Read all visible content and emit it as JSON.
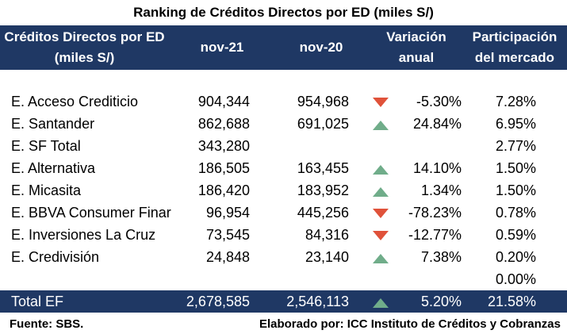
{
  "title": "Ranking de Créditos Directos por ED (miles S/)",
  "header": {
    "col_name": "Créditos Directos por ED\n(miles S/)",
    "col_nov21": "nov-21",
    "col_nov20": "nov-20",
    "col_var": "Variación\nanual",
    "col_part": "Participación\ndel mercado"
  },
  "rows": [
    {
      "name": "E. Acceso Crediticio",
      "nov21": "904,344",
      "nov20": "954,968",
      "trend": "down",
      "var": "-5.30%",
      "part": "7.28%"
    },
    {
      "name": "E. Santander",
      "nov21": "862,688",
      "nov20": "691,025",
      "trend": "up",
      "var": "24.84%",
      "part": "6.95%"
    },
    {
      "name": "E. SF Total",
      "nov21": "343,280",
      "nov20": "",
      "trend": "",
      "var": "",
      "part": "2.77%"
    },
    {
      "name": "E. Alternativa",
      "nov21": "186,505",
      "nov20": "163,455",
      "trend": "up",
      "var": "14.10%",
      "part": "1.50%"
    },
    {
      "name": "E. Micasita",
      "nov21": "186,420",
      "nov20": "183,952",
      "trend": "up",
      "var": "1.34%",
      "part": "1.50%"
    },
    {
      "name": "E. BBVA Consumer Finar",
      "nov21": "96,954",
      "nov20": "445,256",
      "trend": "down",
      "var": "-78.23%",
      "part": "0.78%"
    },
    {
      "name": "E. Inversiones La Cruz",
      "nov21": "73,545",
      "nov20": "84,316",
      "trend": "down",
      "var": "-12.77%",
      "part": "0.59%"
    },
    {
      "name": "E. Credivisión",
      "nov21": "24,848",
      "nov20": "23,140",
      "trend": "up",
      "var": "7.38%",
      "part": "0.20%"
    },
    {
      "name": "",
      "nov21": "",
      "nov20": "",
      "trend": "",
      "var": "",
      "part": "0.00%"
    }
  ],
  "total": {
    "name": "Total EF",
    "nov21": "2,678,585",
    "nov20": "2,546,113",
    "trend": "up",
    "var": "5.20%",
    "part": "21.58%"
  },
  "footer": {
    "source": "Fuente: SBS.",
    "credit": "Elaborado por: ICC Instituto de Créditos y Cobranzas"
  },
  "colors": {
    "header_bg": "#1f3864",
    "up": "#70ad8a",
    "down": "#e0523a"
  }
}
